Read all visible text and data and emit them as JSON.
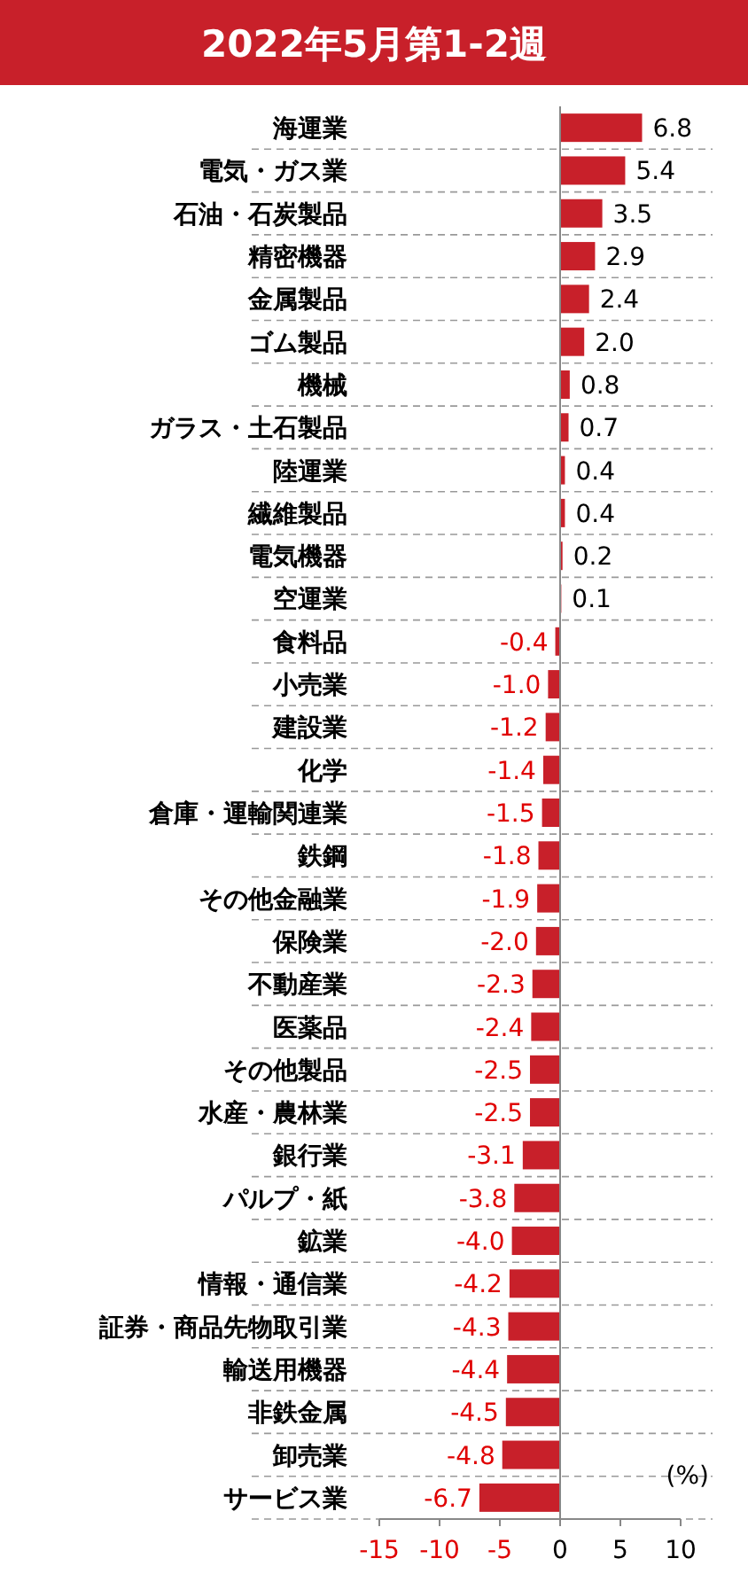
{
  "chart_data": {
    "type": "bar",
    "orientation": "horizontal",
    "title": "2022年5月第1-2週",
    "categories": [
      "海運業",
      "電気・ガス業",
      "石油・石炭製品",
      "精密機器",
      "金属製品",
      "ゴム製品",
      "機械",
      "ガラス・土石製品",
      "陸運業",
      "繊維製品",
      "電気機器",
      "空運業",
      "食料品",
      "小売業",
      "建設業",
      "化学",
      "倉庫・運輸関連業",
      "鉄鋼",
      "その他金融業",
      "保険業",
      "不動産業",
      "医薬品",
      "その他製品",
      "水産・農林業",
      "銀行業",
      "パルプ・紙",
      "鉱業",
      "情報・通信業",
      "証券・商品先物取引業",
      "輸送用機器",
      "非鉄金属",
      "卸売業",
      "サービス業"
    ],
    "values": [
      6.8,
      5.4,
      3.5,
      2.9,
      2.4,
      2.0,
      0.8,
      0.7,
      0.4,
      0.4,
      0.2,
      0.1,
      -0.4,
      -1.0,
      -1.2,
      -1.4,
      -1.5,
      -1.8,
      -1.9,
      -2.0,
      -2.3,
      -2.4,
      -2.5,
      -2.5,
      -3.1,
      -3.8,
      -4.0,
      -4.2,
      -4.3,
      -4.4,
      -4.5,
      -4.8,
      -6.7
    ],
    "color": "#c8202a",
    "xlim": [
      -15,
      10
    ],
    "xticks": [
      -15,
      -10,
      -5,
      0,
      5,
      10
    ],
    "grid": "y",
    "value_labels": [
      "6.8",
      "5.4",
      "3.5",
      "2.9",
      "2.4",
      "2.0",
      "0.8",
      "0.7",
      "0.4",
      "0.4",
      "0.2",
      "0.1",
      "-0.4",
      "-1.0",
      "-1.2",
      "-1.4",
      "-1.5",
      "-1.8",
      "-1.9",
      "-2.0",
      "-2.3",
      "-2.4",
      "-2.5",
      "-2.5",
      "-3.1",
      "-3.8",
      "-4.0",
      "-4.2",
      "-4.3",
      "-4.4",
      "-4.5",
      "-4.8",
      "-6.7"
    ],
    "annotations": [
      "(%)"
    ]
  }
}
